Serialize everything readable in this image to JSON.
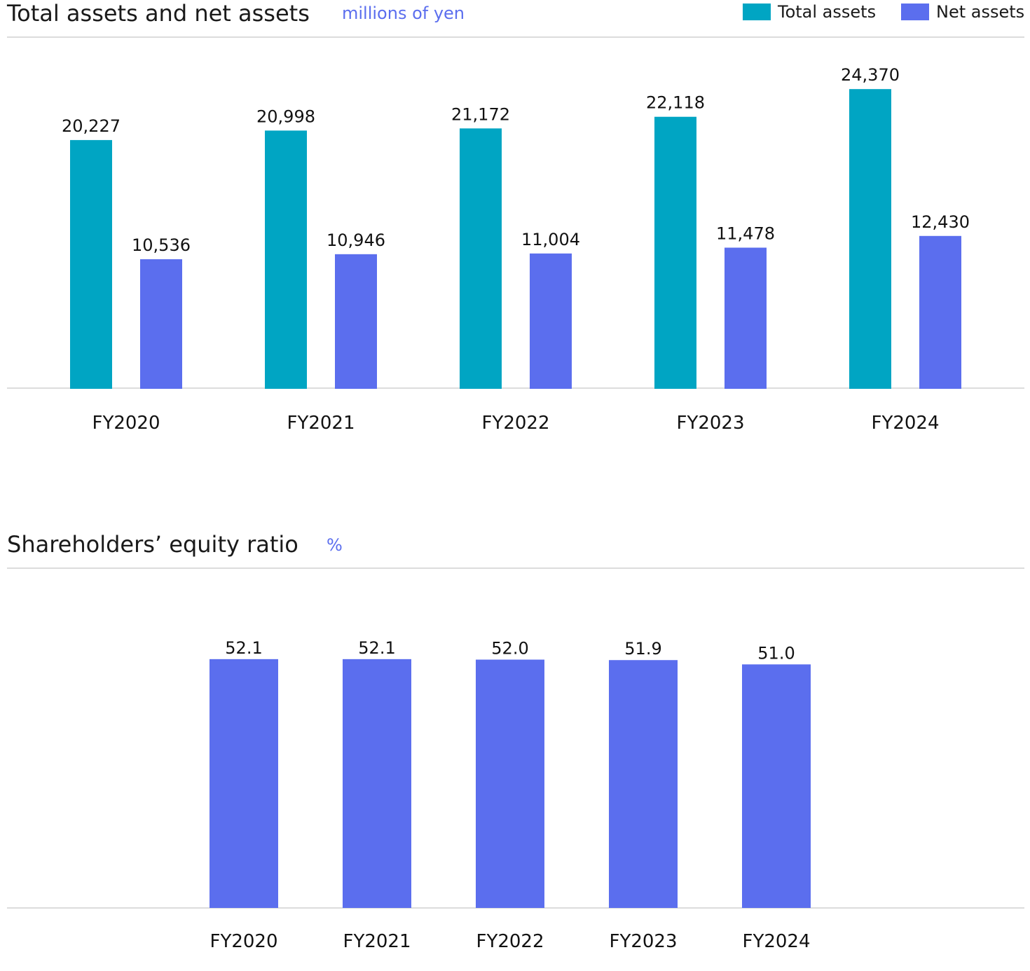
{
  "colors": {
    "total": "#00a5c3",
    "net": "#5b6eee",
    "unit": "#5b6eee",
    "rule": "#dcdcdc"
  },
  "chart_data": [
    {
      "type": "bar",
      "title": "Total assets and net assets",
      "unit": "millions of yen",
      "categories": [
        "FY2020",
        "FY2021",
        "FY2022",
        "FY2023",
        "FY2024"
      ],
      "series": [
        {
          "name": "Total assets",
          "values": [
            20227,
            20998,
            21172,
            22118,
            24370
          ],
          "labels": [
            "20,227",
            "20,998",
            "21,172",
            "22,118",
            "24,370"
          ],
          "color": "#00a5c3"
        },
        {
          "name": "Net assets",
          "values": [
            10536,
            10946,
            11004,
            11478,
            12430
          ],
          "labels": [
            "10,536",
            "10,946",
            "11,004",
            "11,478",
            "12,430"
          ],
          "color": "#5b6eee"
        }
      ],
      "ylim": [
        0,
        27000
      ],
      "legend": "top-right",
      "grid": false
    },
    {
      "type": "bar",
      "title": "Shareholders’ equity ratio",
      "unit": "%",
      "categories": [
        "FY2020",
        "FY2021",
        "FY2022",
        "FY2023",
        "FY2024"
      ],
      "series": [
        {
          "values": [
            52.1,
            52.1,
            52.0,
            51.9,
            51.0
          ],
          "labels": [
            "52.1",
            "52.1",
            "52.0",
            "51.9",
            "51.0"
          ],
          "color": "#5b6eee"
        }
      ],
      "ylim": [
        0,
        60
      ],
      "grid": false
    }
  ]
}
